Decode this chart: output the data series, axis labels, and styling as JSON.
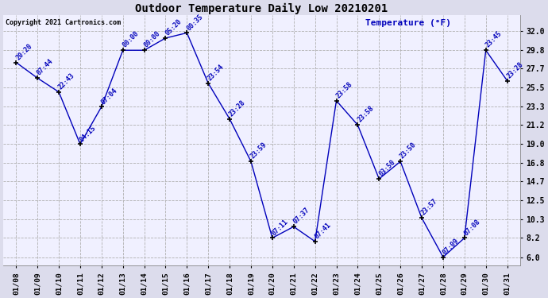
{
  "title": "Outdoor Temperature Daily Low 20210201",
  "ylabel": "Temperature (°F)",
  "copyright": "Copyright 2021 Cartronics.com",
  "background_color": "#dcdcec",
  "plot_bg_color": "#f0f0ff",
  "line_color": "#0000bb",
  "text_color_blue": "#0000bb",
  "text_color_black": "#000000",
  "grid_color": "#b0b0b0",
  "dates": [
    "01/08",
    "01/09",
    "01/10",
    "01/11",
    "01/12",
    "01/13",
    "01/14",
    "01/15",
    "01/16",
    "01/17",
    "01/18",
    "01/19",
    "01/20",
    "01/21",
    "01/22",
    "01/23",
    "01/24",
    "01/25",
    "01/26",
    "01/27",
    "01/28",
    "01/29",
    "01/30",
    "01/31"
  ],
  "values": [
    28.4,
    26.6,
    25.0,
    19.0,
    23.3,
    29.8,
    29.8,
    31.2,
    31.8,
    26.0,
    21.9,
    17.0,
    8.2,
    9.5,
    7.8,
    24.0,
    21.2,
    15.0,
    17.0,
    10.5,
    6.0,
    8.2,
    29.8,
    26.3
  ],
  "labels": [
    "20:20",
    "07:44",
    "22:43",
    "04:15",
    "07:04",
    "00:00",
    "00:00",
    "05:20",
    "00:35",
    "23:54",
    "23:28",
    "23:59",
    "07:11",
    "07:37",
    "07:41",
    "23:58",
    "23:58",
    "03:50",
    "23:50",
    "23:57",
    "07:09",
    "07:08",
    "23:45",
    "23:28"
  ],
  "ylim": [
    5.0,
    33.8
  ],
  "yticks": [
    6.0,
    8.2,
    10.3,
    12.5,
    14.7,
    16.8,
    19.0,
    21.2,
    23.3,
    25.5,
    27.7,
    29.8,
    32.0
  ],
  "yticklabels": [
    "6.0",
    "8.2",
    "10.3",
    "12.5",
    "14.7",
    "16.8",
    "19.0",
    "21.2",
    "23.3",
    "25.5",
    "27.7",
    "29.8",
    "32.0"
  ],
  "figwidth": 6.9,
  "figheight": 3.75,
  "dpi": 100
}
